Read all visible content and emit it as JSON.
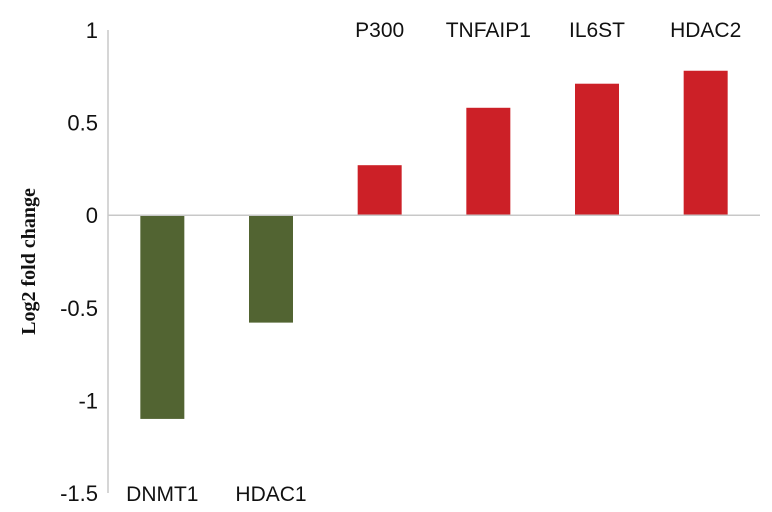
{
  "chart_data": {
    "type": "bar",
    "title": "",
    "xlabel": "",
    "ylabel": "Log2 fold change",
    "ylim": [
      -1.5,
      1
    ],
    "yticks": [
      "1",
      "0.5",
      "0",
      "-0.5",
      "-1",
      "-1.5"
    ],
    "grid": false,
    "categories": [
      "DNMT1",
      "HDAC1",
      "P300",
      "TNFAIP1",
      "IL6ST",
      "HDAC2"
    ],
    "values": [
      -1.1,
      -0.58,
      0.27,
      0.58,
      0.71,
      0.78
    ],
    "colors": {
      "negative": "#526432",
      "positive": "#cc2027",
      "axis": "#c8c8c8"
    }
  }
}
